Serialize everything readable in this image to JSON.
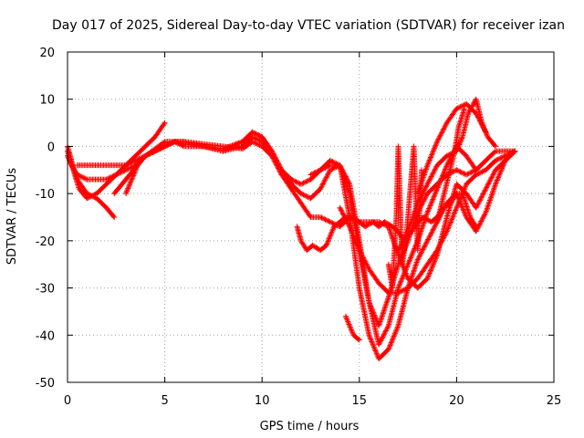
{
  "chart_data": {
    "type": "scatter",
    "title": "Day 017 of 2025, Sidereal Day-to-day VTEC variation (SDTVAR) for receiver izan",
    "xlabel": "GPS time / hours",
    "ylabel": "SDTVAR / TECUs",
    "xlim": [
      0,
      25
    ],
    "ylim": [
      -50,
      20
    ],
    "xticks": [
      0,
      5,
      10,
      15,
      20,
      25
    ],
    "yticks": [
      -50,
      -40,
      -30,
      -20,
      -10,
      0,
      10,
      20
    ],
    "grid": true,
    "marker": "+",
    "color": "#ff0000",
    "series": [
      {
        "name": "s1",
        "x": [
          0,
          0.2,
          0.5,
          1.0,
          1.5,
          2.0,
          2.4
        ],
        "y": [
          0,
          -3,
          -7,
          -10,
          -11,
          -13,
          -15
        ]
      },
      {
        "name": "s2",
        "x": [
          0,
          0.2,
          0.5,
          1,
          1.5,
          2,
          2.5,
          3,
          3.5,
          4,
          5,
          6,
          7,
          8,
          9,
          9.5,
          10,
          10.5
        ],
        "y": [
          -2,
          -4,
          -6,
          -7,
          -7,
          -7,
          -6,
          -5,
          -4,
          -2,
          1,
          1,
          0.5,
          0,
          -0.5,
          1,
          0,
          -2
        ]
      },
      {
        "name": "s3",
        "x": [
          0,
          0.3,
          0.6,
          1.0,
          1.5,
          2.0,
          2.5,
          3.0,
          3.5,
          4.0,
          4.5,
          5.0
        ],
        "y": [
          -1,
          -5,
          -9,
          -11,
          -10,
          -8,
          -6,
          -4,
          -2,
          0,
          2,
          5
        ]
      },
      {
        "name": "s4",
        "x": [
          0.5,
          1,
          1.5,
          2,
          2.5,
          3,
          3.5,
          4,
          4.5,
          5,
          5.5,
          6,
          7,
          8,
          9,
          9.5,
          10,
          10.5,
          11,
          11.5,
          12,
          12.5,
          13,
          13.5,
          14,
          14.5,
          15,
          15.5,
          16,
          16.5,
          17,
          17.5,
          18,
          18.5,
          19,
          19.5,
          20,
          20.5,
          21
        ],
        "y": [
          -4,
          -4,
          -4,
          -4,
          -4,
          -4,
          -3,
          -2,
          -1,
          0,
          1,
          1,
          0,
          -1,
          1,
          3,
          2,
          -1,
          -5,
          -7,
          -8,
          -7,
          -5,
          -4,
          -4,
          -10,
          -22,
          -33,
          -38,
          -32,
          -25,
          -20,
          -14,
          -10,
          -8,
          -6,
          -5,
          -6,
          -5
        ]
      },
      {
        "name": "s5",
        "x": [
          3,
          3.3,
          3.6,
          4,
          4.5,
          5,
          5.5,
          6,
          7,
          8,
          9,
          9.5,
          10,
          10.5,
          11,
          11.5,
          12,
          12.5,
          13,
          13.5,
          14,
          14.5,
          15,
          15.5,
          16,
          16.5,
          17,
          17.5,
          18,
          18.5,
          19,
          19.5,
          20,
          20.5,
          21,
          21.5,
          22,
          22.5,
          23
        ],
        "y": [
          -10,
          -7,
          -4,
          -2,
          -1,
          0,
          1,
          0.5,
          0,
          -0.5,
          1,
          3,
          2,
          -1,
          -5,
          -8,
          -10,
          -11,
          -9,
          -5,
          -4,
          -8,
          -20,
          -33,
          -42,
          -38,
          -30,
          -25,
          -20,
          -14,
          -9,
          -4,
          0,
          -2,
          -5,
          -3,
          -1,
          -1,
          -1
        ]
      },
      {
        "name": "s6",
        "x": [
          2.4,
          2.8,
          3.2,
          3.6,
          4,
          4.5,
          5,
          5.5,
          6,
          7,
          8,
          9,
          9.5,
          10,
          10.5,
          11,
          11.5,
          12,
          12.5,
          13,
          13.5,
          14,
          14.5,
          15,
          15.5,
          16,
          16.5,
          17,
          17.5,
          18,
          18.5,
          19,
          19.5,
          20,
          20.5,
          21,
          21.5,
          22,
          22.5,
          23
        ],
        "y": [
          -10,
          -8,
          -6,
          -4,
          -2,
          -1,
          0,
          1,
          0,
          0,
          -1,
          0,
          2,
          1,
          -2,
          -6,
          -9,
          -12,
          -15,
          -15,
          -16,
          -17,
          -15,
          -16,
          -16,
          -16,
          -17,
          -23,
          -28,
          -30,
          -28,
          -23,
          -15,
          -8,
          -10,
          -13,
          -9,
          -5,
          -3,
          -1
        ]
      },
      {
        "name": "s7",
        "x": [
          11.8,
          12,
          12.3,
          12.6,
          13,
          13.3,
          13.7,
          14,
          14.3,
          14.7,
          15,
          15.3,
          15.7,
          16,
          16.3,
          16.7,
          17,
          17.3,
          17.7,
          18,
          18.3,
          18.7,
          19,
          19.3,
          19.7,
          20,
          20.3,
          20.7,
          21
        ],
        "y": [
          -17,
          -20,
          -22,
          -21,
          -22,
          -21,
          -17,
          -16,
          -15,
          -15,
          -16,
          -17,
          -16,
          -17,
          -16,
          -17,
          -18,
          -20,
          -18,
          -16,
          -15,
          -16,
          -15,
          -13,
          -12,
          -10,
          -10,
          -15,
          -17
        ]
      },
      {
        "name": "s8",
        "x": [
          12.5,
          13,
          13.5,
          14,
          14.5,
          15,
          15.5,
          16,
          16.5,
          17,
          17.5,
          18,
          18.5,
          19,
          19.5,
          20,
          20.5,
          21,
          21.5,
          22,
          22.5,
          23
        ],
        "y": [
          -6,
          -5,
          -3,
          -4,
          -15,
          -30,
          -40,
          -45,
          -43,
          -38,
          -30,
          -24,
          -20,
          -16,
          -12,
          -10,
          -15,
          -18,
          -14,
          -8,
          -3,
          -1
        ]
      },
      {
        "name": "s9",
        "x": [
          14,
          14.5,
          15,
          15.5,
          16,
          16.5,
          17,
          17.5,
          18,
          18.5,
          19,
          19.5,
          20,
          20.5,
          21,
          21.5,
          22,
          22.5,
          23
        ],
        "y": [
          -13,
          -17,
          -22,
          -26,
          -29,
          -31,
          -31,
          -30,
          -28,
          -25,
          -22,
          -18,
          -13,
          -8,
          -6,
          -5,
          -3,
          -2,
          -1
        ]
      },
      {
        "name": "s10",
        "x": [
          17,
          17.5,
          18,
          18.5,
          19,
          19.5,
          20,
          20.3,
          20.6,
          21,
          21.3,
          21.6,
          22
        ],
        "y": [
          -22,
          -18,
          -12,
          -8,
          -4,
          -2,
          -1,
          2,
          7,
          10,
          5,
          2,
          0
        ]
      },
      {
        "name": "s11",
        "x": [
          18,
          18.5,
          19,
          19.5,
          20,
          20.5,
          21,
          21.5
        ],
        "y": [
          -10,
          -4,
          1,
          5,
          8,
          9,
          7,
          3
        ]
      },
      {
        "name": "s12",
        "x": [
          14.3,
          14.5,
          14.7,
          15
        ],
        "y": [
          -36,
          -38,
          -40,
          -41
        ]
      },
      {
        "name": "s13",
        "x": [
          16.5,
          16.7,
          16.9,
          17.0,
          17.2,
          17.4,
          17.6,
          17.8,
          18.0,
          18.2
        ],
        "y": [
          -25,
          -30,
          -15,
          0,
          -25,
          -20,
          -10,
          0,
          -22,
          -5
        ]
      },
      {
        "name": "s14",
        "x": [
          19.0,
          19.3,
          19.6,
          19.9,
          20.1,
          20.4
        ],
        "y": [
          -16,
          -11,
          -6,
          -1,
          4,
          8
        ]
      }
    ]
  }
}
